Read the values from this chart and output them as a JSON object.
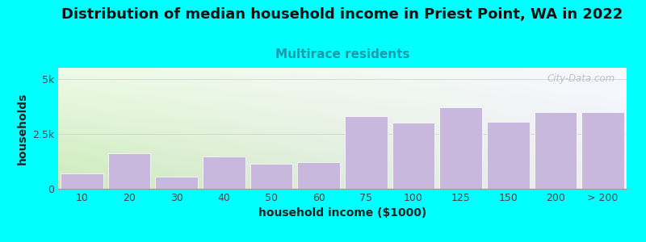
{
  "title": "Distribution of median household income in Priest Point, WA in 2022",
  "subtitle": "Multirace residents",
  "xlabel": "household income ($1000)",
  "ylabel": "households",
  "bar_labels": [
    "10",
    "20",
    "30",
    "40",
    "50",
    "60",
    "75",
    "100",
    "125",
    "150",
    "200",
    "> 200"
  ],
  "bar_values": [
    700,
    1600,
    550,
    1450,
    1150,
    1200,
    3300,
    3000,
    3700,
    3050,
    3500,
    3500
  ],
  "bar_color": "#c9b8de",
  "bg_outer": "#00ffff",
  "ylim": [
    0,
    5500
  ],
  "yticks": [
    0,
    2500,
    5000
  ],
  "ytick_labels": [
    "0",
    "2.5k",
    "5k"
  ],
  "watermark": "City-Data.com",
  "title_fontsize": 13,
  "subtitle_fontsize": 11,
  "subtitle_color": "#1a9baa",
  "axis_label_fontsize": 10,
  "tick_fontsize": 9,
  "grad_left_bottom": "#cceabb",
  "grad_left_top": "#edfbe6",
  "grad_right_bottom": "#eeeef8",
  "grad_right_top": "#f8f8ff"
}
